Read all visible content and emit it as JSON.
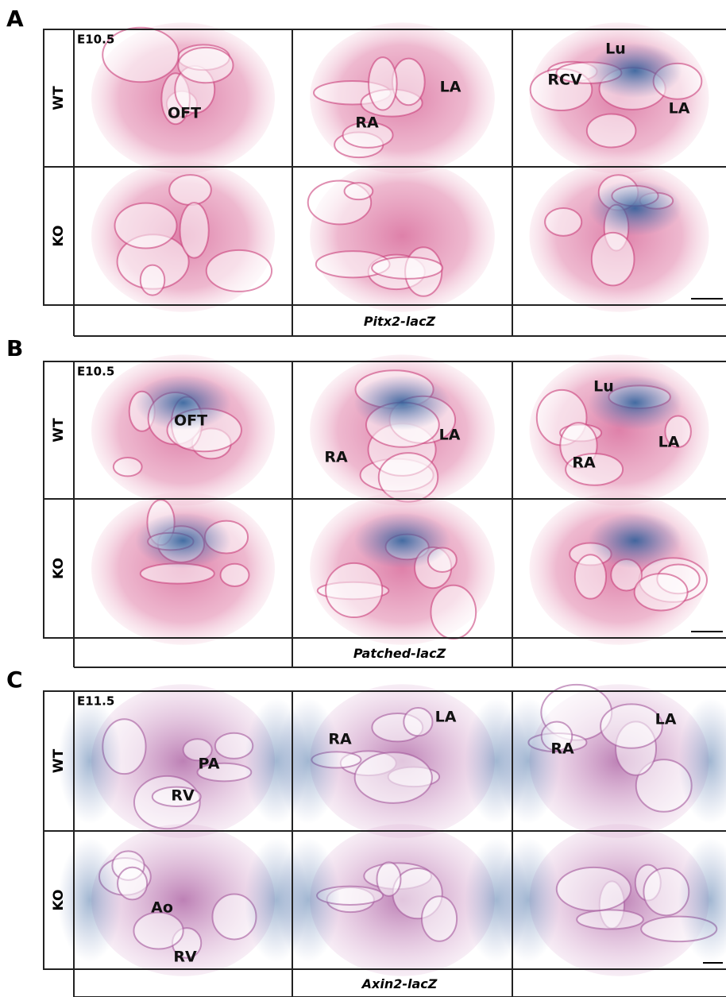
{
  "panels": [
    {
      "label": "A",
      "stage": "E10.5",
      "rows": [
        "WT",
        "KO"
      ],
      "reporter": "Pitx2-lacZ",
      "annotations": [
        "OFT",
        "RA",
        "LA",
        "RCV",
        "Lu",
        "LA"
      ]
    },
    {
      "label": "B",
      "stage": "E10.5",
      "rows": [
        "WT",
        "KO"
      ],
      "reporter": "Patched-lacZ",
      "annotations": [
        "OFT",
        "RA",
        "LA",
        "Lu",
        "LA",
        "RA"
      ]
    },
    {
      "label": "C",
      "stage": "E11.5",
      "rows": [
        "WT",
        "KO"
      ],
      "reporter": "Axin2-lacZ",
      "annotations": [
        "PA",
        "RV",
        "RA",
        "LA",
        "RA",
        "LA",
        "Ao",
        "RV"
      ]
    }
  ]
}
